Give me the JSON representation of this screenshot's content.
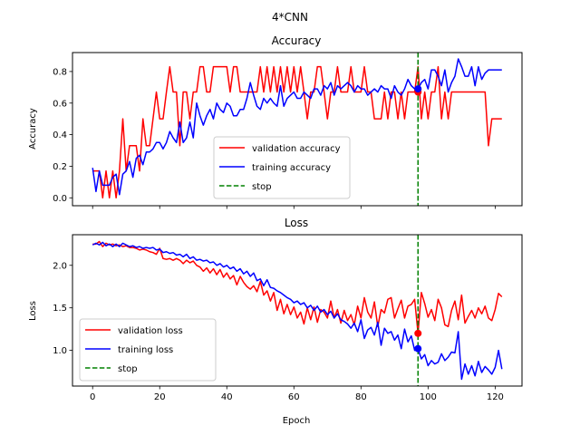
{
  "figure": {
    "suptitle": "4*CNN"
  },
  "chart_data": [
    {
      "type": "line",
      "title": "Accuracy",
      "xlabel": "",
      "ylabel": "Accuracy",
      "xlim": [
        -6,
        128
      ],
      "ylim": [
        -0.05,
        0.92
      ],
      "xticks": [
        0,
        20,
        40,
        60,
        80,
        100,
        120
      ],
      "xtick_labels": [],
      "yticks": [
        0.0,
        0.2,
        0.4,
        0.6,
        0.8
      ],
      "ytick_labels": [
        "0.0",
        "0.2",
        "0.4",
        "0.6",
        "0.8"
      ],
      "grid": false,
      "legend_position": "lower center",
      "series": [
        {
          "name": "validation accuracy",
          "color": "#ff0000",
          "style": "solid",
          "x": [
            0,
            1,
            2,
            3,
            4,
            5,
            6,
            7,
            8,
            9,
            10,
            11,
            12,
            13,
            14,
            15,
            16,
            17,
            18,
            19,
            20,
            21,
            22,
            23,
            24,
            25,
            26,
            27,
            28,
            29,
            30,
            31,
            32,
            33,
            34,
            35,
            36,
            37,
            38,
            39,
            40,
            41,
            42,
            43,
            44,
            45,
            46,
            47,
            48,
            49,
            50,
            51,
            52,
            53,
            54,
            55,
            56,
            57,
            58,
            59,
            60,
            61,
            62,
            63,
            64,
            65,
            66,
            67,
            68,
            69,
            70,
            71,
            72,
            73,
            74,
            75,
            76,
            77,
            78,
            79,
            80,
            81,
            82,
            83,
            84,
            85,
            86,
            87,
            88,
            89,
            90,
            91,
            92,
            93,
            94,
            95,
            96,
            97,
            98,
            99,
            100,
            101,
            102,
            103,
            104,
            105,
            106,
            107,
            108,
            109,
            110,
            111,
            112,
            113,
            114,
            115,
            116,
            117,
            118,
            119,
            120,
            121,
            122
          ],
          "y": [
            0.17,
            0.17,
            0.17,
            0.0,
            0.17,
            0.0,
            0.17,
            0.0,
            0.17,
            0.5,
            0.17,
            0.33,
            0.33,
            0.33,
            0.17,
            0.5,
            0.33,
            0.33,
            0.5,
            0.67,
            0.5,
            0.5,
            0.67,
            0.83,
            0.67,
            0.67,
            0.33,
            0.67,
            0.67,
            0.5,
            0.67,
            0.67,
            0.83,
            0.83,
            0.67,
            0.67,
            0.83,
            0.83,
            0.83,
            0.83,
            0.83,
            0.67,
            0.83,
            0.83,
            0.67,
            0.67,
            0.67,
            0.67,
            0.67,
            0.67,
            0.83,
            0.67,
            0.83,
            0.67,
            0.83,
            0.67,
            0.83,
            0.67,
            0.83,
            0.67,
            0.83,
            0.67,
            0.83,
            0.67,
            0.5,
            0.67,
            0.67,
            0.83,
            0.83,
            0.67,
            0.5,
            0.67,
            0.67,
            0.83,
            0.67,
            0.67,
            0.67,
            0.83,
            0.67,
            0.67,
            0.67,
            0.83,
            0.67,
            0.67,
            0.5,
            0.5,
            0.5,
            0.67,
            0.5,
            0.67,
            0.67,
            0.5,
            0.67,
            0.5,
            0.67,
            0.67,
            0.67,
            0.83,
            0.5,
            0.67,
            0.5,
            0.67,
            0.67,
            0.83,
            0.5,
            0.67,
            0.5,
            0.67,
            0.67,
            0.67,
            0.67,
            0.67,
            0.67,
            0.67,
            0.67,
            0.67,
            0.67,
            0.67,
            0.33,
            0.5,
            0.5,
            0.5,
            0.5
          ]
        },
        {
          "name": "training accuracy",
          "color": "#0000ff",
          "style": "solid",
          "x": [
            0,
            1,
            2,
            3,
            4,
            5,
            6,
            7,
            8,
            9,
            10,
            11,
            12,
            13,
            14,
            15,
            16,
            17,
            18,
            19,
            20,
            21,
            22,
            23,
            24,
            25,
            26,
            27,
            28,
            29,
            30,
            31,
            32,
            33,
            34,
            35,
            36,
            37,
            38,
            39,
            40,
            41,
            42,
            43,
            44,
            45,
            46,
            47,
            48,
            49,
            50,
            51,
            52,
            53,
            54,
            55,
            56,
            57,
            58,
            59,
            60,
            61,
            62,
            63,
            64,
            65,
            66,
            67,
            68,
            69,
            70,
            71,
            72,
            73,
            74,
            75,
            76,
            77,
            78,
            79,
            80,
            81,
            82,
            83,
            84,
            85,
            86,
            87,
            88,
            89,
            90,
            91,
            92,
            93,
            94,
            95,
            96,
            97,
            98,
            99,
            100,
            101,
            102,
            103,
            104,
            105,
            106,
            107,
            108,
            109,
            110,
            111,
            112,
            113,
            114,
            115,
            116,
            117,
            118,
            119,
            120,
            121,
            122
          ],
          "y": [
            0.19,
            0.04,
            0.17,
            0.08,
            0.08,
            0.08,
            0.13,
            0.15,
            0.02,
            0.15,
            0.17,
            0.23,
            0.13,
            0.25,
            0.27,
            0.21,
            0.29,
            0.29,
            0.31,
            0.35,
            0.35,
            0.31,
            0.35,
            0.42,
            0.38,
            0.35,
            0.48,
            0.35,
            0.38,
            0.48,
            0.38,
            0.6,
            0.52,
            0.46,
            0.52,
            0.56,
            0.5,
            0.6,
            0.56,
            0.54,
            0.6,
            0.58,
            0.52,
            0.52,
            0.56,
            0.56,
            0.63,
            0.73,
            0.65,
            0.58,
            0.56,
            0.63,
            0.6,
            0.63,
            0.6,
            0.58,
            0.71,
            0.58,
            0.63,
            0.65,
            0.67,
            0.63,
            0.63,
            0.67,
            0.65,
            0.63,
            0.69,
            0.69,
            0.65,
            0.71,
            0.69,
            0.73,
            0.65,
            0.71,
            0.69,
            0.71,
            0.73,
            0.71,
            0.67,
            0.71,
            0.69,
            0.69,
            0.65,
            0.67,
            0.69,
            0.67,
            0.71,
            0.69,
            0.69,
            0.63,
            0.71,
            0.67,
            0.65,
            0.69,
            0.75,
            0.71,
            0.69,
            0.69,
            0.73,
            0.75,
            0.69,
            0.81,
            0.81,
            0.77,
            0.71,
            0.81,
            0.67,
            0.73,
            0.77,
            0.88,
            0.83,
            0.77,
            0.77,
            0.83,
            0.71,
            0.83,
            0.75,
            0.79,
            0.81,
            0.81,
            0.81,
            0.81,
            0.81
          ]
        },
        {
          "name": "stop",
          "color": "#008000",
          "style": "dashed",
          "vline_x": 97
        }
      ],
      "markers": [
        {
          "series": "validation accuracy",
          "x": 97,
          "y": 0.67,
          "color": "#ff0000"
        },
        {
          "series": "training accuracy",
          "x": 97,
          "y": 0.69,
          "color": "#0000ff"
        }
      ]
    },
    {
      "type": "line",
      "title": "Loss",
      "xlabel": "Epoch",
      "ylabel": "Loss",
      "xlim": [
        -6,
        128
      ],
      "ylim": [
        0.58,
        2.36
      ],
      "xticks": [
        0,
        20,
        40,
        60,
        80,
        100,
        120
      ],
      "xtick_labels": [
        "0",
        "20",
        "40",
        "60",
        "80",
        "100",
        "120"
      ],
      "yticks": [
        1.0,
        1.5,
        2.0
      ],
      "ytick_labels": [
        "1.0",
        "1.5",
        "2.0"
      ],
      "grid": false,
      "legend_position": "lower left",
      "series": [
        {
          "name": "validation loss",
          "color": "#ff0000",
          "style": "solid",
          "x": [
            0,
            1,
            2,
            3,
            4,
            5,
            6,
            7,
            8,
            9,
            10,
            11,
            12,
            13,
            14,
            15,
            16,
            17,
            18,
            19,
            20,
            21,
            22,
            23,
            24,
            25,
            26,
            27,
            28,
            29,
            30,
            31,
            32,
            33,
            34,
            35,
            36,
            37,
            38,
            39,
            40,
            41,
            42,
            43,
            44,
            45,
            46,
            47,
            48,
            49,
            50,
            51,
            52,
            53,
            54,
            55,
            56,
            57,
            58,
            59,
            60,
            61,
            62,
            63,
            64,
            65,
            66,
            67,
            68,
            69,
            70,
            71,
            72,
            73,
            74,
            75,
            76,
            77,
            78,
            79,
            80,
            81,
            82,
            83,
            84,
            85,
            86,
            87,
            88,
            89,
            90,
            91,
            92,
            93,
            94,
            95,
            96,
            97,
            98,
            99,
            100,
            101,
            102,
            103,
            104,
            105,
            106,
            107,
            108,
            109,
            110,
            111,
            112,
            113,
            114,
            115,
            116,
            117,
            118,
            119,
            120,
            121,
            122
          ],
          "y": [
            2.25,
            2.25,
            2.28,
            2.22,
            2.26,
            2.24,
            2.25,
            2.23,
            2.24,
            2.22,
            2.23,
            2.21,
            2.21,
            2.2,
            2.18,
            2.19,
            2.18,
            2.16,
            2.15,
            2.13,
            2.2,
            2.08,
            2.07,
            2.08,
            2.06,
            2.08,
            2.06,
            2.02,
            2.06,
            2.03,
            2.05,
            2.0,
            1.98,
            1.93,
            1.97,
            1.91,
            1.96,
            1.89,
            1.95,
            1.86,
            1.91,
            1.84,
            1.88,
            1.77,
            1.87,
            1.8,
            1.75,
            1.72,
            1.76,
            1.69,
            1.81,
            1.65,
            1.7,
            1.58,
            1.68,
            1.47,
            1.6,
            1.43,
            1.54,
            1.42,
            1.51,
            1.38,
            1.45,
            1.31,
            1.5,
            1.36,
            1.51,
            1.33,
            1.48,
            1.45,
            1.38,
            1.58,
            1.38,
            1.48,
            1.32,
            1.47,
            1.35,
            1.42,
            1.3,
            1.52,
            1.38,
            1.62,
            1.45,
            1.38,
            1.57,
            1.28,
            1.48,
            1.44,
            1.6,
            1.62,
            1.38,
            1.49,
            1.59,
            1.38,
            1.52,
            1.54,
            1.6,
            1.2,
            1.68,
            1.55,
            1.39,
            1.48,
            1.35,
            1.6,
            1.5,
            1.3,
            1.28,
            1.47,
            1.58,
            1.36,
            1.65,
            1.32,
            1.4,
            1.47,
            1.38,
            1.5,
            1.43,
            1.52,
            1.38,
            1.35,
            1.48,
            1.67,
            1.63
          ]
        },
        {
          "name": "training loss",
          "color": "#0000ff",
          "style": "solid",
          "x": [
            0,
            1,
            2,
            3,
            4,
            5,
            6,
            7,
            8,
            9,
            10,
            11,
            12,
            13,
            14,
            15,
            16,
            17,
            18,
            19,
            20,
            21,
            22,
            23,
            24,
            25,
            26,
            27,
            28,
            29,
            30,
            31,
            32,
            33,
            34,
            35,
            36,
            37,
            38,
            39,
            40,
            41,
            42,
            43,
            44,
            45,
            46,
            47,
            48,
            49,
            50,
            51,
            52,
            53,
            54,
            55,
            56,
            57,
            58,
            59,
            60,
            61,
            62,
            63,
            64,
            65,
            66,
            67,
            68,
            69,
            70,
            71,
            72,
            73,
            74,
            75,
            76,
            77,
            78,
            79,
            80,
            81,
            82,
            83,
            84,
            85,
            86,
            87,
            88,
            89,
            90,
            91,
            92,
            93,
            94,
            95,
            96,
            97,
            98,
            99,
            100,
            101,
            102,
            103,
            104,
            105,
            106,
            107,
            108,
            109,
            110,
            111,
            112,
            113,
            114,
            115,
            116,
            117,
            118,
            119,
            120,
            121,
            122
          ],
          "y": [
            2.24,
            2.26,
            2.24,
            2.27,
            2.23,
            2.25,
            2.22,
            2.25,
            2.22,
            2.26,
            2.24,
            2.22,
            2.23,
            2.21,
            2.22,
            2.2,
            2.21,
            2.2,
            2.21,
            2.18,
            2.19,
            2.15,
            2.16,
            2.14,
            2.15,
            2.12,
            2.13,
            2.1,
            2.13,
            2.08,
            2.1,
            2.06,
            2.07,
            2.05,
            2.06,
            2.03,
            2.04,
            2.0,
            2.02,
            1.98,
            2.0,
            1.96,
            1.98,
            1.93,
            1.96,
            1.9,
            1.93,
            1.87,
            1.91,
            1.82,
            1.84,
            1.76,
            1.83,
            1.74,
            1.73,
            1.7,
            1.68,
            1.65,
            1.62,
            1.6,
            1.56,
            1.58,
            1.54,
            1.56,
            1.5,
            1.53,
            1.47,
            1.52,
            1.45,
            1.48,
            1.42,
            1.46,
            1.38,
            1.43,
            1.36,
            1.34,
            1.31,
            1.26,
            1.32,
            1.22,
            1.36,
            1.14,
            1.24,
            1.27,
            1.18,
            1.33,
            1.06,
            1.26,
            1.2,
            1.22,
            1.12,
            1.18,
            1.02,
            1.25,
            1.1,
            1.17,
            1.0,
            1.02,
            0.9,
            0.95,
            0.82,
            0.88,
            0.84,
            0.86,
            0.96,
            0.88,
            0.92,
            0.98,
            0.97,
            1.22,
            0.66,
            0.84,
            0.72,
            0.82,
            0.7,
            0.87,
            0.74,
            0.81,
            0.77,
            0.72,
            0.8,
            1.0,
            0.78
          ]
        },
        {
          "name": "stop",
          "color": "#008000",
          "style": "dashed",
          "vline_x": 97
        }
      ],
      "markers": [
        {
          "series": "validation loss",
          "x": 97,
          "y": 1.2,
          "color": "#ff0000"
        },
        {
          "series": "training loss",
          "x": 97,
          "y": 1.02,
          "color": "#0000ff"
        }
      ]
    }
  ]
}
